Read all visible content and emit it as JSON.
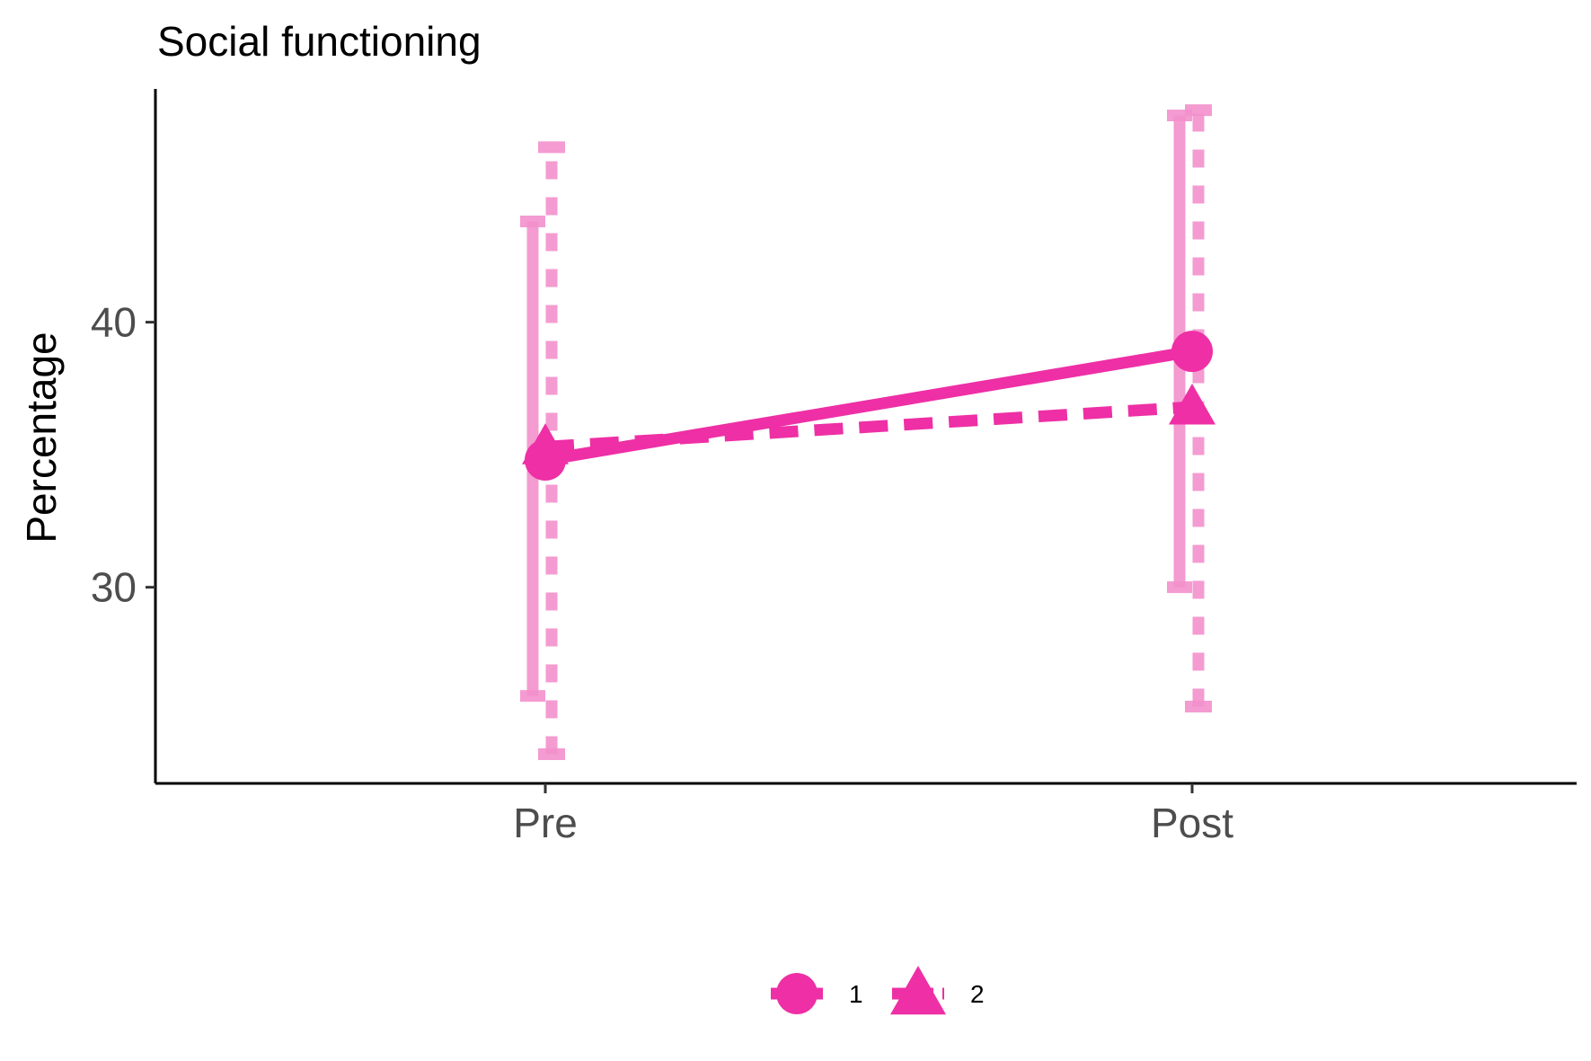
{
  "chart_data": {
    "type": "line",
    "title": "Social functioning",
    "xlabel": "",
    "ylabel": "Percentage",
    "categories": [
      "Pre",
      "Post"
    ],
    "ylim": [
      22.6,
      48.8
    ],
    "yticks": [
      30,
      40
    ],
    "grid": false,
    "legend_position": "bottom",
    "color": "#ee2fa5",
    "errorbar_color": "#f390cc",
    "series": [
      {
        "name": "1",
        "marker": "circle",
        "linestyle": "solid",
        "values": [
          34.8,
          38.9
        ],
        "lower": [
          25.9,
          30.0
        ],
        "upper": [
          43.8,
          47.8
        ]
      },
      {
        "name": "2",
        "marker": "triangle",
        "linestyle": "dashed",
        "values": [
          35.3,
          36.8
        ],
        "lower": [
          23.7,
          25.5
        ],
        "upper": [
          46.6,
          48.0
        ]
      }
    ]
  }
}
